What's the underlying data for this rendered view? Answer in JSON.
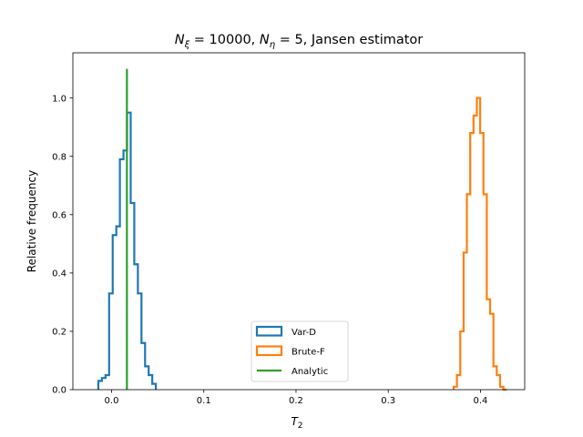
{
  "chart_data": {
    "type": "histogram",
    "title": "N_ξ = 10000, N_η = 5, Jansen estimator",
    "title_parts": {
      "n_xi_sym": "N",
      "n_xi_sub": "ξ",
      "n_xi_val": " = 10000, ",
      "n_eta_sym": "N",
      "n_eta_sub": "η",
      "n_eta_val": " = 5, Jansen estimator"
    },
    "xlabel": "T",
    "xlabel_sub": "2",
    "ylabel": "Relative frequency",
    "xlim": [
      -0.042,
      0.448
    ],
    "ylim": [
      0,
      1.155
    ],
    "xticks": [
      0.0,
      0.1,
      0.2,
      0.3,
      0.4
    ],
    "xtick_labels": [
      "0.0",
      "0.1",
      "0.2",
      "0.3",
      "0.4"
    ],
    "yticks": [
      0.0,
      0.2,
      0.4,
      0.6,
      0.8,
      1.0
    ],
    "ytick_labels": [
      "0.0",
      "0.2",
      "0.4",
      "0.6",
      "0.8",
      "1.0"
    ],
    "grid": false,
    "legend_position": "lower-center",
    "series": [
      {
        "name": "Var-D",
        "kind": "step-histogram",
        "color": "#1f77b4",
        "bin_edges": [
          -0.0144,
          -0.0105,
          -0.0066,
          -0.0027,
          0.0012,
          0.0051,
          0.009,
          0.0129,
          0.0168,
          0.0207,
          0.0246,
          0.0285,
          0.0324,
          0.0363,
          0.0402,
          0.0441,
          0.048
        ],
        "values": [
          0.03,
          0.04,
          0.05,
          0.33,
          0.53,
          0.56,
          0.79,
          0.82,
          0.95,
          0.64,
          0.43,
          0.33,
          0.16,
          0.08,
          0.05,
          0.02
        ]
      },
      {
        "name": "Brute-F",
        "kind": "step-histogram",
        "color": "#ff7f0e",
        "bin_edges": [
          0.3709,
          0.3745,
          0.3781,
          0.3817,
          0.3853,
          0.3889,
          0.3925,
          0.3961,
          0.3997,
          0.4033,
          0.4069,
          0.4105,
          0.4141,
          0.4177,
          0.4213,
          0.4249,
          0.4285
        ],
        "values": [
          0.01,
          0.05,
          0.2,
          0.47,
          0.67,
          0.88,
          0.94,
          1.0,
          0.88,
          0.67,
          0.31,
          0.26,
          0.08,
          0.05,
          0.01,
          0.0
        ]
      },
      {
        "name": "Analytic",
        "kind": "vertical-line",
        "color": "#2ca02c",
        "x": 0.0166,
        "y_range": [
          0,
          1.1
        ]
      }
    ]
  }
}
